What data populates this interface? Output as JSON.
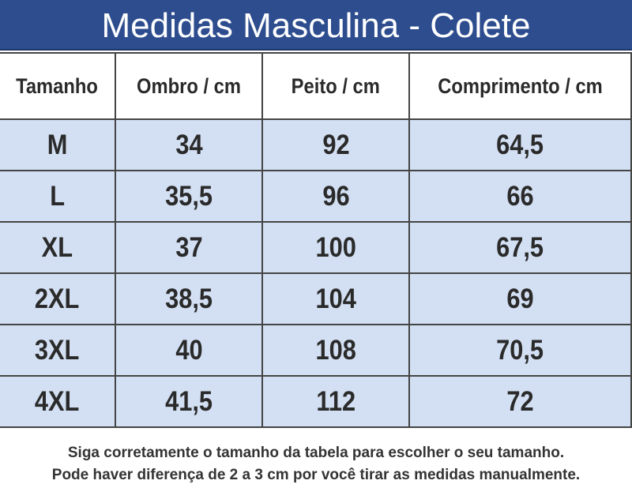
{
  "header": {
    "title": "Medidas Masculina - Colete"
  },
  "table": {
    "columns": [
      "Tamanho",
      "Ombro / cm",
      "Peito / cm",
      "Comprimento / cm"
    ],
    "rows": [
      [
        "M",
        "34",
        "92",
        "64,5"
      ],
      [
        "L",
        "35,5",
        "96",
        "66"
      ],
      [
        "XL",
        "37",
        "100",
        "67,5"
      ],
      [
        "2XL",
        "38,5",
        "104",
        "69"
      ],
      [
        "3XL",
        "40",
        "108",
        "70,5"
      ],
      [
        "4XL",
        "41,5",
        "112",
        "72"
      ]
    ]
  },
  "footer": {
    "lines": [
      "Siga corretamente o tamanho da tabela para escolher o seu tamanho.",
      "Pode haver diferença de 2 a 3 cm por você tirar as medidas manualmente."
    ]
  }
}
